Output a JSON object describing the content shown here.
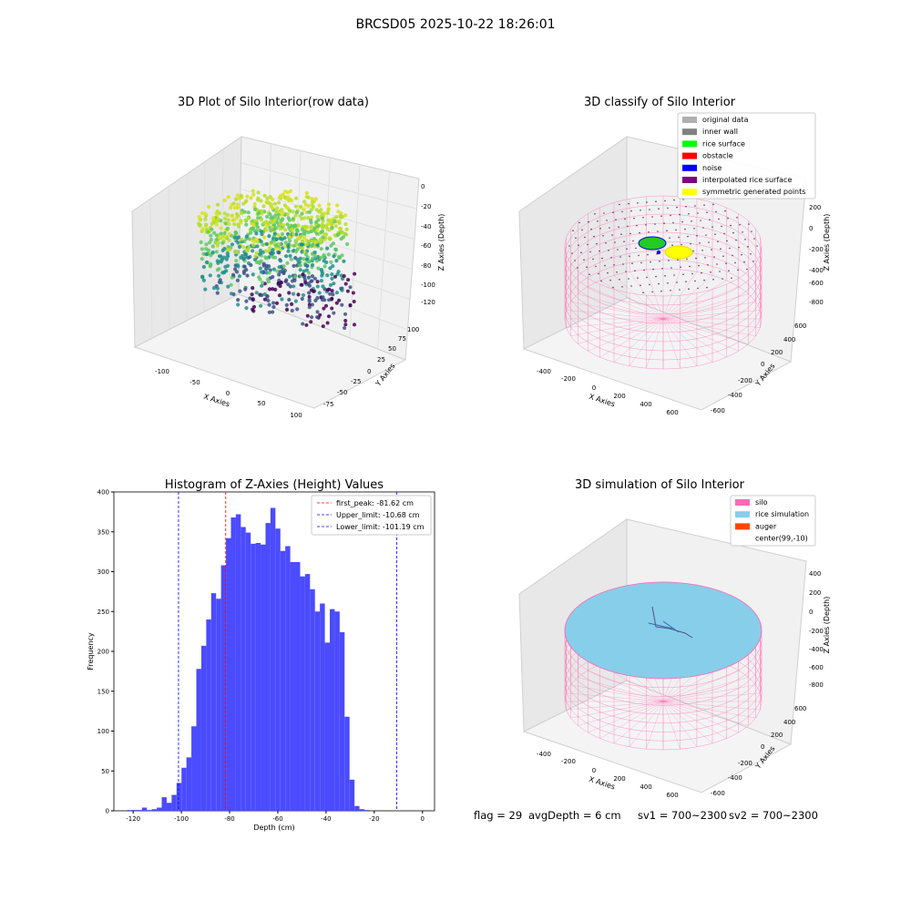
{
  "figure": {
    "suptitle": "BRCSD05 2025-10-22 18:26:01"
  },
  "status": {
    "flag": "flag = 29",
    "avg_depth": "avgDepth = 6 cm",
    "sv1": "sv1 = 700~2300",
    "sv2": "sv2 = 700~2300"
  },
  "colors": {
    "hist_bar": "#4b4bff",
    "first_peak": "#ff0000",
    "limits": "#0000ff",
    "silo": "#ff69b4",
    "rice_simulation": "#87ceeb",
    "auger": "#ff4500"
  },
  "chart_data": [
    {
      "type": "scatter",
      "projection": "3d",
      "title": "3D Plot of Silo Interior(row data)",
      "xlabel": "X Axies",
      "ylabel": "Y Axies",
      "zlabel": "Z Axies (Depth)",
      "x_ticks": [
        "-100",
        "-50",
        "0",
        "50",
        "100"
      ],
      "y_ticks": [
        "-75",
        "-50",
        "-25",
        "0",
        "25",
        "50",
        "75",
        "100"
      ],
      "z_ticks": [
        "0",
        "-20",
        "-40",
        "-60",
        "-80",
        "-100",
        "-120"
      ],
      "xlim": [
        -130,
        110
      ],
      "ylim": [
        -85,
        110
      ],
      "zlim": [
        -130,
        5
      ],
      "colormap": "viridis",
      "grid": true
    },
    {
      "type": "scatter",
      "projection": "3d",
      "title": "3D classify of Silo Interior",
      "xlabel": "X Axies",
      "ylabel": "Y Axies",
      "zlabel": "Z Axies (Depth)",
      "x_ticks": [
        "-400",
        "-200",
        "0",
        "200",
        "400",
        "600"
      ],
      "y_ticks": [
        "-600",
        "-400",
        "-200",
        "0",
        "200",
        "400",
        "600"
      ],
      "z_ticks": [
        "200",
        "0",
        "-200",
        "-400",
        "-600",
        "-800"
      ],
      "legend_position": "top-right",
      "legend": [
        {
          "label": "original data",
          "color": "#b0b0b0"
        },
        {
          "label": "inner wall",
          "color": "#808080"
        },
        {
          "label": "rice surface",
          "color": "#00ff00"
        },
        {
          "label": "obstacle",
          "color": "#ff0000"
        },
        {
          "label": "noise",
          "color": "#0000ff"
        },
        {
          "label": "interpolated rice surface",
          "color": "#800080"
        },
        {
          "label": "symmetric generated points",
          "color": "#ffff00"
        }
      ],
      "grid": true
    },
    {
      "type": "bar",
      "title": "Histogram of Z-Axies (Height) Values",
      "xlabel": "Depth (cm)",
      "ylabel": "Frequency",
      "xlim": [
        -128,
        5
      ],
      "ylim": [
        0,
        400
      ],
      "x_ticks": [
        -120,
        -100,
        -80,
        -60,
        -40,
        -20,
        0
      ],
      "y_ticks": [
        0,
        50,
        100,
        150,
        200,
        250,
        300,
        350,
        400
      ],
      "bin_start": -122.5,
      "bin_width": 2.05,
      "values": [
        1,
        1,
        1,
        4,
        1,
        2,
        4,
        17,
        10,
        20,
        35,
        54,
        67,
        106,
        178,
        207,
        240,
        273,
        266,
        308,
        342,
        368,
        372,
        356,
        349,
        335,
        336,
        334,
        361,
        380,
        354,
        326,
        332,
        312,
        312,
        294,
        297,
        278,
        250,
        260,
        211,
        253,
        250,
        224,
        118,
        39,
        6,
        2,
        1
      ],
      "lines": [
        {
          "label": "first_peak: -81.62 cm",
          "x": -81.62,
          "color": "#ff0000"
        },
        {
          "label": "Upper_limit: -10.68 cm",
          "x": -10.68,
          "color": "#0000ff"
        },
        {
          "label": "Lower_limit: -101.19 cm",
          "x": -101.19,
          "color": "#0000ff"
        }
      ],
      "legend_position": "top-right",
      "grid": false
    },
    {
      "type": "scatter",
      "projection": "3d",
      "title": "3D simulation of Silo Interior",
      "xlabel": "X Axies",
      "ylabel": "Y Axies",
      "zlabel": "Z Axies (Depth)",
      "x_ticks": [
        "-400",
        "-200",
        "0",
        "200",
        "400",
        "600"
      ],
      "y_ticks": [
        "-600",
        "-400",
        "-200",
        "0",
        "200",
        "400",
        "600"
      ],
      "z_ticks": [
        "400",
        "200",
        "0",
        "-200",
        "-400",
        "-600",
        "-800"
      ],
      "legend_position": "top-right",
      "legend": [
        {
          "label": "silo",
          "color": "#ff69b4"
        },
        {
          "label": "rice simulation",
          "color": "#87ceeb"
        },
        {
          "label": "auger",
          "color": "#ff4500"
        },
        {
          "label": "center(99,-10)",
          "color": ""
        }
      ],
      "grid": true
    }
  ]
}
